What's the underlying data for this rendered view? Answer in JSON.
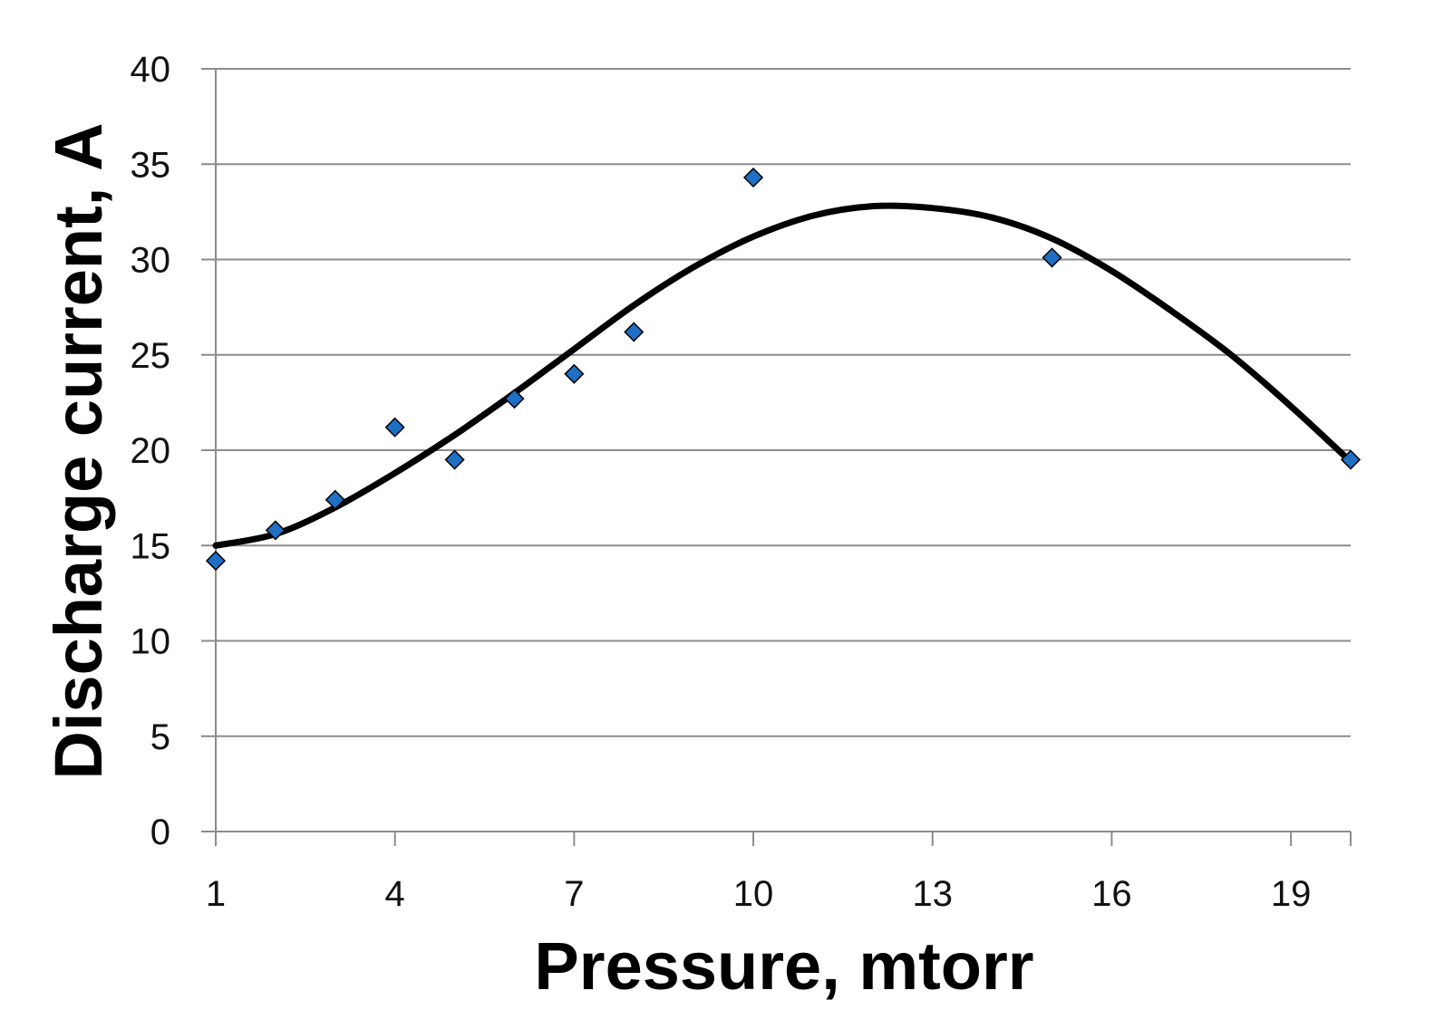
{
  "chart_data": {
    "type": "scatter",
    "title": "",
    "xlabel": "Pressure, mtorr",
    "ylabel": "Discharge current, A",
    "xlim": [
      1,
      20
    ],
    "ylim": [
      0,
      40
    ],
    "x_ticks": [
      1,
      4,
      7,
      10,
      13,
      16,
      19
    ],
    "y_ticks": [
      0,
      5,
      10,
      15,
      20,
      25,
      30,
      35,
      40
    ],
    "grid": "horizontal",
    "legend": "none",
    "series": [
      {
        "marker": "diamond",
        "color": "#1f6fc4",
        "x": [
          1,
          2,
          3,
          4,
          5,
          6,
          7,
          8,
          10,
          15,
          20
        ],
        "y": [
          14.2,
          15.8,
          17.4,
          21.2,
          19.5,
          22.7,
          24.0,
          26.2,
          34.3,
          30.1,
          19.5
        ]
      }
    ],
    "trendline": {
      "kind": "polynomial",
      "color": "#000000",
      "x": [
        1,
        2,
        3,
        4,
        5,
        6,
        7,
        8,
        9,
        10,
        11,
        12,
        13,
        14,
        15,
        16,
        17,
        18,
        19,
        20
      ],
      "y": [
        15.0,
        15.6,
        17.0,
        18.8,
        20.8,
        23.0,
        25.3,
        27.6,
        29.6,
        31.2,
        32.3,
        32.8,
        32.7,
        32.2,
        31.1,
        29.4,
        27.3,
        25.0,
        22.3,
        19.4
      ]
    }
  }
}
